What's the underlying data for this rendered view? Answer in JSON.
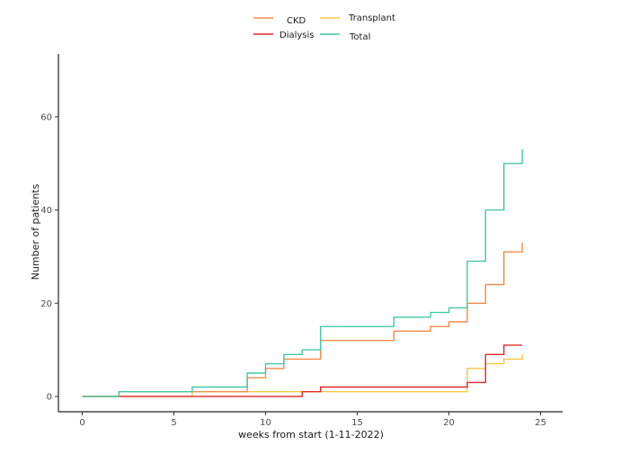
{
  "chart_data": {
    "type": "line",
    "step": true,
    "title": "",
    "xlabel": "weeks from start (1-11-2022)",
    "ylabel": "Number of patients",
    "xlim": [
      -1.3,
      26.2
    ],
    "ylim": [
      -3.3,
      73.5
    ],
    "x_ticks": [
      0,
      5,
      10,
      15,
      20,
      25
    ],
    "y_ticks": [
      0,
      20,
      40,
      60
    ],
    "grid": false,
    "legend_position": "top-center",
    "series": [
      {
        "name": "CKD",
        "color": "#f58a4a",
        "x": [
          0,
          2,
          6,
          9,
          10,
          11,
          13,
          17,
          19,
          20,
          21,
          22,
          23,
          24
        ],
        "y": [
          0,
          1,
          1,
          4,
          6,
          8,
          12,
          14,
          15,
          16,
          20,
          24,
          31,
          33
        ]
      },
      {
        "name": "Dialysis",
        "color": "#e0282b",
        "x": [
          0,
          2,
          12,
          13,
          21,
          22,
          23,
          24
        ],
        "y": [
          0,
          0,
          1,
          2,
          3,
          9,
          11,
          11
        ]
      },
      {
        "name": "Transplant",
        "color": "#f5c842",
        "x": [
          0,
          6,
          21,
          22,
          23,
          24
        ],
        "y": [
          0,
          1,
          6,
          7,
          8,
          9
        ]
      },
      {
        "name": "Total",
        "color": "#40c9a6",
        "x": [
          0,
          2,
          6,
          9,
          10,
          11,
          12,
          13,
          17,
          19,
          20,
          21,
          22,
          23,
          24
        ],
        "y": [
          0,
          1,
          2,
          5,
          7,
          9,
          10,
          15,
          17,
          18,
          19,
          29,
          40,
          50,
          53
        ]
      }
    ]
  }
}
